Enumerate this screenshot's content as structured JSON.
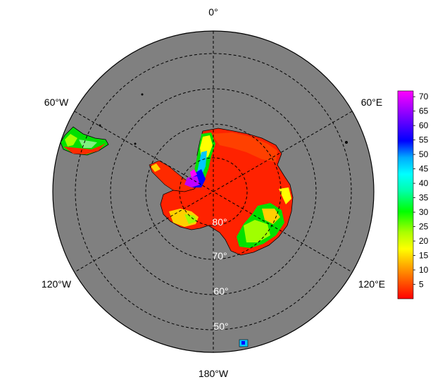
{
  "map": {
    "projection": "south-polar-stereographic",
    "background_color": "#808080",
    "land_palette": [
      "#ff0000",
      "#ff3a00",
      "#ff7a00",
      "#ffd000",
      "#ffff00",
      "#a0ff00",
      "#00e000",
      "#00c8ff",
      "#0000ff",
      "#a000ff",
      "#ff00ff"
    ],
    "longitude_labels": [
      {
        "text": "0°",
        "lon": 0
      },
      {
        "text": "60°E",
        "lon": 60
      },
      {
        "text": "120°E",
        "lon": 120
      },
      {
        "text": "180°W",
        "lon": 180
      },
      {
        "text": "120°W",
        "lon": -120
      },
      {
        "text": "60°W",
        "lon": -60
      }
    ],
    "latitude_labels": [
      {
        "text": "80°",
        "lat": -80
      },
      {
        "text": "70°",
        "lat": -70
      },
      {
        "text": "60°",
        "lat": -60
      },
      {
        "text": "50°",
        "lat": -50
      }
    ],
    "graticule_latitudes": [
      -80,
      -70,
      -60,
      -50
    ],
    "graticule_longitudes": [
      0,
      60,
      120,
      180,
      240,
      300
    ]
  },
  "colorbar": {
    "min": 0,
    "max": 72,
    "ticks": [
      "70",
      "65",
      "60",
      "55",
      "50",
      "45",
      "40",
      "35",
      "30",
      "25",
      "20",
      "15",
      "10",
      "5"
    ],
    "tick_values": [
      70,
      65,
      60,
      55,
      50,
      45,
      40,
      35,
      30,
      25,
      20,
      15,
      10,
      5
    ],
    "colors": [
      "#ff0000",
      "#ff5500",
      "#ffaa00",
      "#ffff00",
      "#aaff00",
      "#00ff00",
      "#00ffaa",
      "#00ffff",
      "#00aaff",
      "#0000ff",
      "#5500ff",
      "#aa00ff",
      "#ff00ff"
    ]
  }
}
